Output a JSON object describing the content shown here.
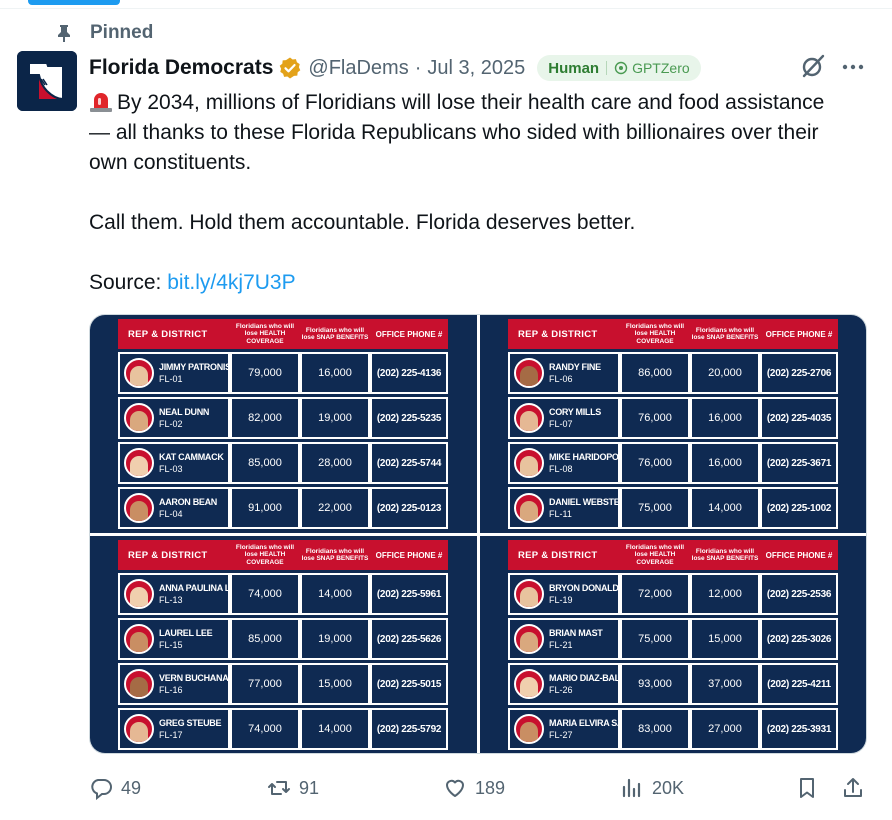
{
  "pinned": {
    "label": "Pinned"
  },
  "author": {
    "display_name": "Florida Democrats",
    "handle": "@FlaDems",
    "separator": "·",
    "date": "Jul 3, 2025"
  },
  "gptzero": {
    "verdict": "Human",
    "brand": "GPTZero"
  },
  "tweet": {
    "line1": "By 2034, millions of Floridians will lose their health care and food assistance — all thanks to these Florida Republicans who sided with billionaires over their own constituents.",
    "line2": "Call them. Hold them accountable. Florida deserves better.",
    "source_label": "Source: ",
    "source_link": "bit.ly/4kj7U3P"
  },
  "table_header": {
    "rep": "REP & DISTRICT",
    "health": "Floridians who will lose HEALTH COVERAGE",
    "snap": "Floridians who will lose SNAP BENEFITS",
    "phone": "OFFICE PHONE #"
  },
  "panels": [
    {
      "rows": [
        {
          "name": "JIMMY PATRONIS",
          "district": "FL-01",
          "health": "79,000",
          "snap": "16,000",
          "phone": "(202) 225-4136"
        },
        {
          "name": "NEAL DUNN",
          "district": "FL-02",
          "health": "82,000",
          "snap": "19,000",
          "phone": "(202) 225-5235"
        },
        {
          "name": "KAT CAMMACK",
          "district": "FL-03",
          "health": "85,000",
          "snap": "28,000",
          "phone": "(202) 225-5744"
        },
        {
          "name": "AARON BEAN",
          "district": "FL-04",
          "health": "91,000",
          "snap": "22,000",
          "phone": "(202) 225-0123"
        }
      ]
    },
    {
      "rows": [
        {
          "name": "RANDY FINE",
          "district": "FL-06",
          "health": "86,000",
          "snap": "20,000",
          "phone": "(202) 225-2706"
        },
        {
          "name": "CORY MILLS",
          "district": "FL-07",
          "health": "76,000",
          "snap": "16,000",
          "phone": "(202) 225-4035"
        },
        {
          "name": "MIKE HARIDOPOLOS",
          "district": "FL-08",
          "health": "76,000",
          "snap": "16,000",
          "phone": "(202) 225-3671"
        },
        {
          "name": "DANIEL WEBSTER",
          "district": "FL-11",
          "health": "75,000",
          "snap": "14,000",
          "phone": "(202) 225-1002"
        }
      ]
    },
    {
      "rows": [
        {
          "name": "ANNA PAULINA LUNA",
          "district": "FL-13",
          "health": "74,000",
          "snap": "14,000",
          "phone": "(202) 225-5961"
        },
        {
          "name": "LAUREL LEE",
          "district": "FL-15",
          "health": "85,000",
          "snap": "19,000",
          "phone": "(202) 225-5626"
        },
        {
          "name": "VERN BUCHANAN",
          "district": "FL-16",
          "health": "77,000",
          "snap": "15,000",
          "phone": "(202) 225-5015"
        },
        {
          "name": "GREG STEUBE",
          "district": "FL-17",
          "health": "74,000",
          "snap": "14,000",
          "phone": "(202) 225-5792"
        }
      ]
    },
    {
      "rows": [
        {
          "name": "BRYON DONALDS",
          "district": "FL-19",
          "health": "72,000",
          "snap": "12,000",
          "phone": "(202) 225-2536"
        },
        {
          "name": "BRIAN MAST",
          "district": "FL-21",
          "health": "75,000",
          "snap": "15,000",
          "phone": "(202) 225-3026"
        },
        {
          "name": "MARIO DIAZ-BALART",
          "district": "FL-26",
          "health": "93,000",
          "snap": "37,000",
          "phone": "(202) 225-4211"
        },
        {
          "name": "MARIA ELVIRA SALAZAR",
          "district": "FL-27",
          "health": "83,000",
          "snap": "27,000",
          "phone": "(202) 225-3931"
        }
      ]
    }
  ],
  "actions": {
    "replies": "49",
    "reposts": "91",
    "likes": "189",
    "views": "20K"
  },
  "icons": {
    "pin": "pin-icon",
    "verified": "verified-badge-icon",
    "grok": "grok-icon",
    "more": "more-icon",
    "reply": "reply-icon",
    "repost": "repost-icon",
    "like": "heart-icon",
    "views": "views-icon",
    "bookmark": "bookmark-icon",
    "share": "share-icon"
  },
  "colors": {
    "link": "#1d9bf0",
    "muted": "#536471",
    "table_red": "#c8102e",
    "table_navy": "#0f2a52"
  }
}
